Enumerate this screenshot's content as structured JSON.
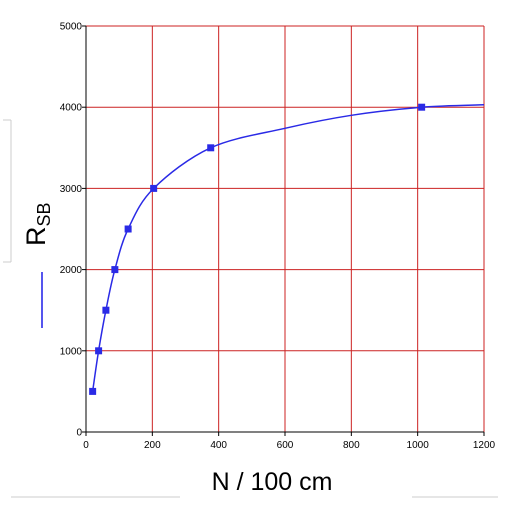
{
  "chart_data": {
    "type": "line",
    "title": "",
    "xlabel": "N / 100 cm",
    "ylabel_main": "R",
    "ylabel_sub": "SB",
    "xlim": [
      0,
      1200
    ],
    "ylim": [
      0,
      5000
    ],
    "xticks": [
      0,
      200,
      400,
      600,
      800,
      1000,
      1200
    ],
    "yticks": [
      0,
      1000,
      2000,
      3000,
      4000,
      5000
    ],
    "grid": true,
    "colors": {
      "grid": "#cc2222",
      "series": "#2a2ae6",
      "frame": "#000000"
    },
    "series": [
      {
        "name": "",
        "marker": "square",
        "x": [
          20,
          38,
          60,
          87,
          127,
          204,
          376,
          1012
        ],
        "y": [
          500,
          1000,
          1500,
          2000,
          2500,
          3000,
          3500,
          4000
        ]
      }
    ],
    "curve": {
      "x": [
        20,
        38,
        60,
        87,
        127,
        204,
        376,
        600,
        800,
        1012,
        1200
      ],
      "y": [
        500,
        1000,
        1500,
        2000,
        2500,
        3000,
        3500,
        3740,
        3900,
        4000,
        4030
      ]
    }
  }
}
